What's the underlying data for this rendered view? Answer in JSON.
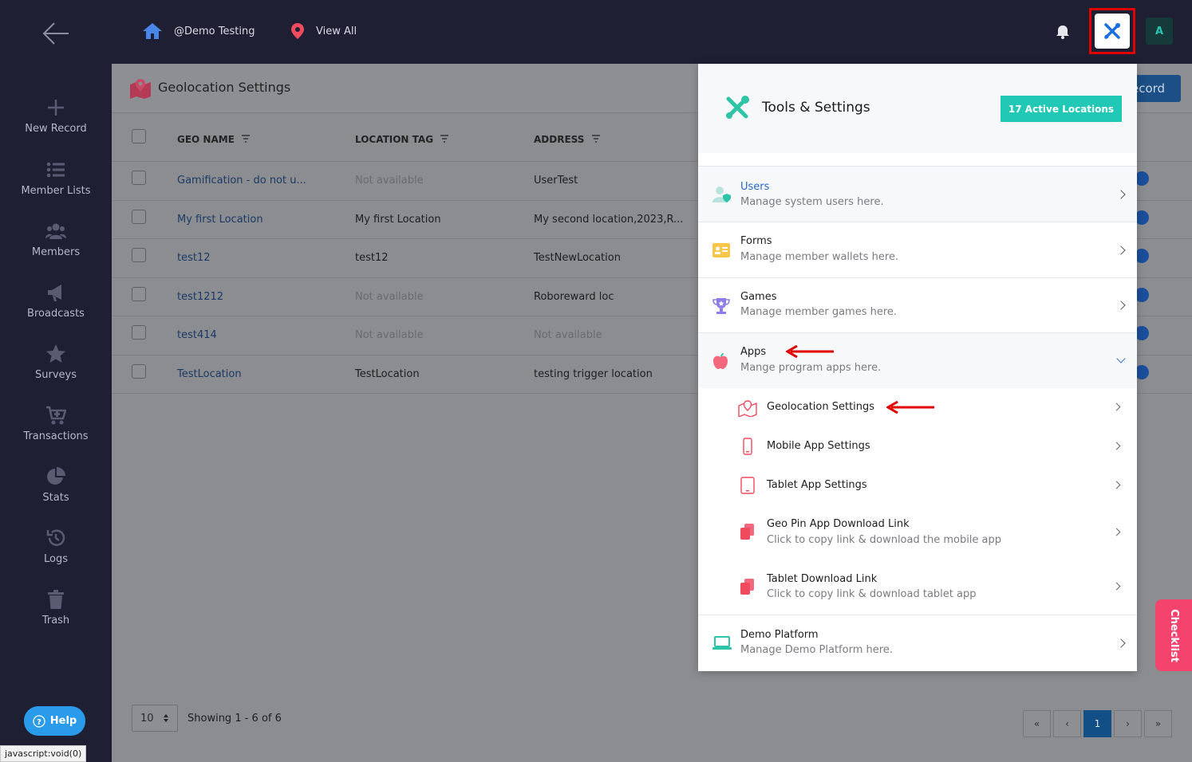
{
  "topbar": {
    "org_name": "@Demo Testing",
    "location_link": "View All",
    "avatar_initial": "A"
  },
  "sidebar": {
    "items": [
      {
        "label": "New Record",
        "icon": "plus-icon"
      },
      {
        "label": "Member Lists",
        "icon": "list-icon"
      },
      {
        "label": "Members",
        "icon": "users-icon"
      },
      {
        "label": "Broadcasts",
        "icon": "megaphone-icon"
      },
      {
        "label": "Surveys",
        "icon": "star-icon"
      },
      {
        "label": "Transactions",
        "icon": "cart-icon"
      },
      {
        "label": "Stats",
        "icon": "pie-chart-icon"
      },
      {
        "label": "Logs",
        "icon": "history-icon"
      },
      {
        "label": "Trash",
        "icon": "trash-icon"
      }
    ],
    "help_label": "Help"
  },
  "status_bar": "javascript:void(0)",
  "page": {
    "title": "Geolocation Settings",
    "add_record_label": "ecord"
  },
  "table": {
    "columns": [
      "GEO NAME",
      "LOCATION TAG",
      "ADDRESS"
    ],
    "rows": [
      {
        "name": "Gamification - do not u...",
        "tag": "Not available",
        "address": "UserTest"
      },
      {
        "name": "My first Location",
        "tag": "My first Location",
        "address": "My second location,2023,R..."
      },
      {
        "name": "test12",
        "tag": "test12",
        "address": "TestNewLocation"
      },
      {
        "name": "test1212",
        "tag": "Not available",
        "address": "Roboreward loc"
      },
      {
        "name": "test414",
        "tag": "Not available",
        "address": "Not available"
      },
      {
        "name": "TestLocation",
        "tag": "TestLocation",
        "address": "testing trigger location"
      }
    ]
  },
  "pagination": {
    "page_size": "10",
    "showing": "Showing 1 - 6 of 6",
    "first": "«",
    "prev": "‹",
    "current": "1",
    "next": "›",
    "last": "»"
  },
  "panel": {
    "title": "Tools & Settings",
    "active_locations": "17 Active Locations",
    "items": [
      {
        "title": "Users",
        "subtitle": "Manage system users here.",
        "icon": "user-shield-icon"
      },
      {
        "title": "Forms",
        "subtitle": "Manage member wallets here.",
        "icon": "id-card-icon"
      },
      {
        "title": "Games",
        "subtitle": "Manage member games here.",
        "icon": "trophy-icon"
      },
      {
        "title": "Apps",
        "subtitle": "Mange program apps here.",
        "icon": "apple-icon"
      },
      {
        "title": "Demo Platform",
        "subtitle": "Manage Demo Platform here.",
        "icon": "laptop-icon"
      }
    ],
    "app_subitems": [
      {
        "title": "Geolocation Settings",
        "subtitle": "",
        "icon": "map-pin-icon"
      },
      {
        "title": "Mobile App Settings",
        "subtitle": "",
        "icon": "mobile-icon"
      },
      {
        "title": "Tablet App Settings",
        "subtitle": "",
        "icon": "tablet-icon"
      },
      {
        "title": "Geo Pin App Download Link",
        "subtitle": "Click to copy link & download the mobile app",
        "icon": "copy-icon"
      },
      {
        "title": "Tablet Download Link",
        "subtitle": "Click to copy link & download tablet app",
        "icon": "copy-icon"
      }
    ]
  },
  "checklist_label": "Checklist",
  "colors": {
    "accent_teal": "#21c8b6",
    "link_blue": "#1b4f85",
    "highlight_red": "#e00000",
    "checklist_pink": "#f4436c"
  }
}
